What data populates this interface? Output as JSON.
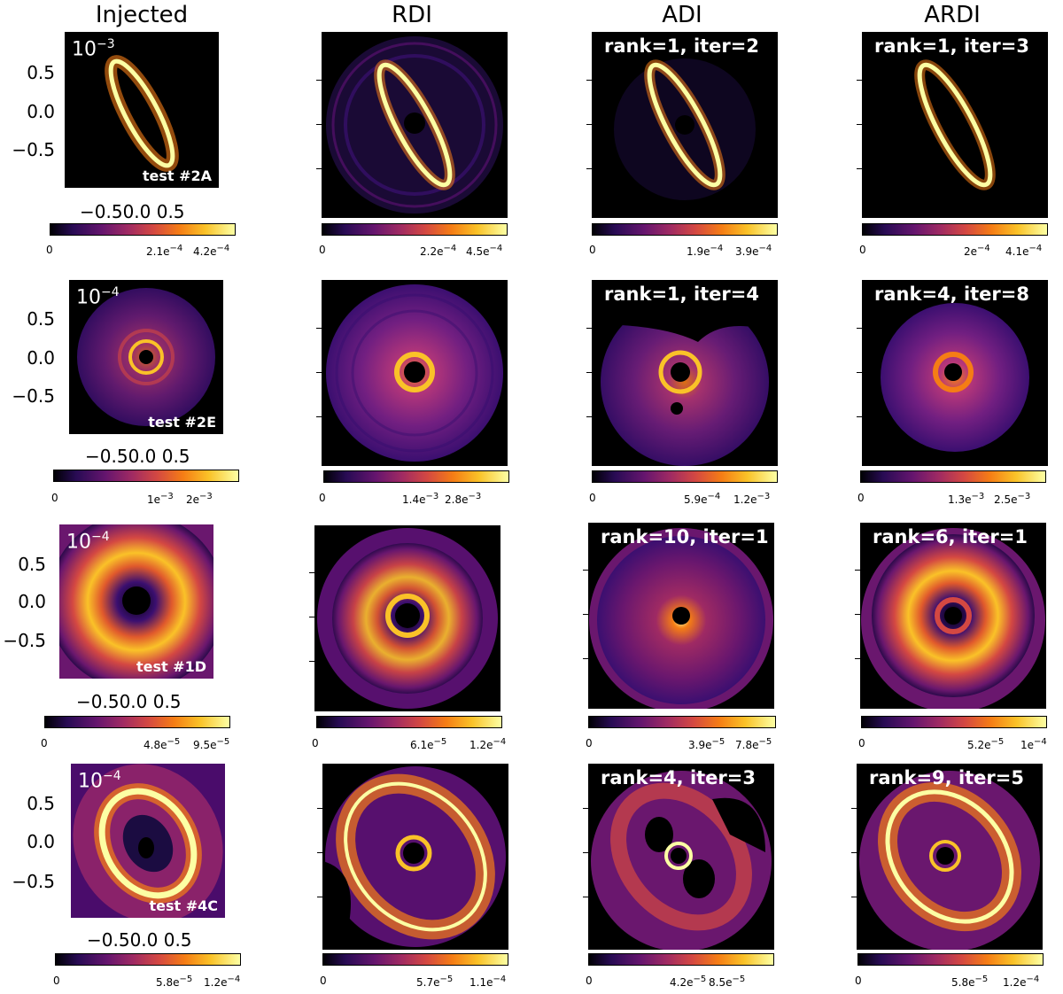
{
  "columns": [
    "Injected",
    "RDI",
    "ADI",
    "ARDI"
  ],
  "rows": [
    {
      "scale_base": "10",
      "scale_exp": "−3",
      "test": "test #2A",
      "adi_label": "rank=1, iter=2",
      "ardi_label": "rank=1, iter=3",
      "cb_injected": [
        "0",
        "2.1e",
        "−4",
        "4.2e",
        "−4"
      ],
      "cb_rdi": [
        "0",
        "2.2e",
        "−4",
        "4.5e",
        "−4"
      ],
      "cb_adi": [
        "0",
        "1.9e",
        "−4",
        "3.9e",
        "−4"
      ],
      "cb_ardi": [
        "0",
        "2e",
        "−4",
        "4.1e",
        "−4"
      ]
    },
    {
      "scale_base": "10",
      "scale_exp": "−4",
      "test": "test #2E",
      "adi_label": "rank=1, iter=4",
      "ardi_label": "rank=4, iter=8",
      "cb_injected": [
        "0",
        "1e",
        "−3",
        "2e",
        "−3"
      ],
      "cb_rdi": [
        "0",
        "1.4e",
        "−3",
        "2.8e",
        "−3"
      ],
      "cb_adi": [
        "0",
        "5.9e",
        "−4",
        "1.2e",
        "−3"
      ],
      "cb_ardi": [
        "0",
        "1.3e",
        "−3",
        "2.5e",
        "−3"
      ]
    },
    {
      "scale_base": "10",
      "scale_exp": "−4",
      "test": "test #1D",
      "adi_label": "rank=10, iter=1",
      "ardi_label": "rank=6, iter=1",
      "cb_injected": [
        "0",
        "4.8e",
        "−5",
        "9.5e",
        "−5"
      ],
      "cb_rdi": [
        "0",
        "6.1e",
        "−5",
        "1.2e",
        "−4"
      ],
      "cb_adi": [
        "0",
        "3.9e",
        "−5",
        "7.8e",
        "−5"
      ],
      "cb_ardi": [
        "0",
        "5.2e",
        "−5",
        "1e",
        "−4"
      ]
    },
    {
      "scale_base": "10",
      "scale_exp": "−4",
      "test": "test #4C",
      "adi_label": "rank=4, iter=3",
      "ardi_label": "rank=9, iter=5",
      "cb_injected": [
        "0",
        "5.8e",
        "−5",
        "1.2e",
        "−4"
      ],
      "cb_rdi": [
        "0",
        "5.7e",
        "−5",
        "1.1e",
        "−4"
      ],
      "cb_adi": [
        "0",
        "4.2e",
        "−5",
        "8.5e",
        "−5"
      ],
      "cb_ardi": [
        "0",
        "5.8e",
        "−5",
        "1.2e",
        "−4"
      ]
    }
  ],
  "yticks": [
    "0.5",
    "0.0",
    "−0.5"
  ],
  "xticks": "−0.50.0 0.5",
  "colormap": "inferno"
}
